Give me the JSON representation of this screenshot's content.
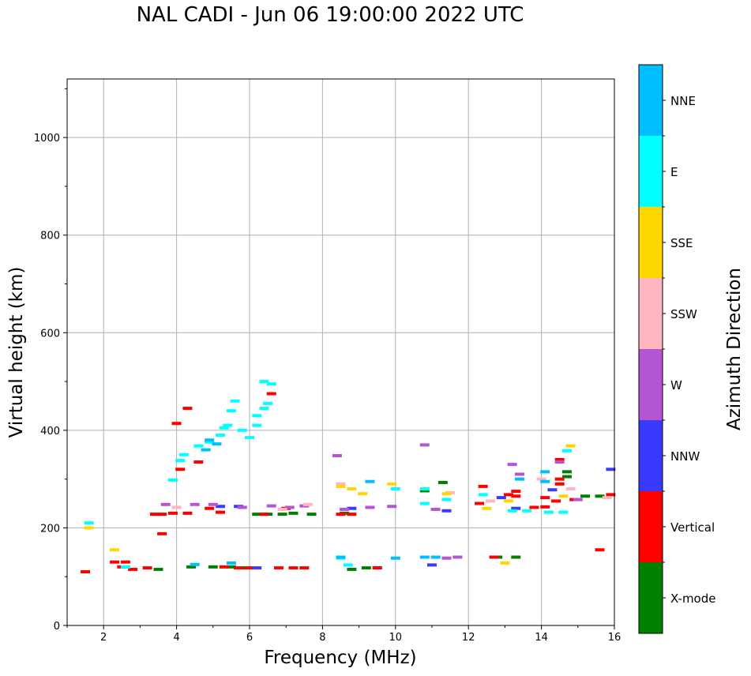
{
  "chart_data": {
    "type": "scatter",
    "title": "NAL CADI - Jun 06 19:00:00 2022 UTC",
    "xlabel": "Frequency (MHz)",
    "ylabel": "Virtual height (km)",
    "xlim": [
      1,
      16
    ],
    "ylim": [
      0,
      1120
    ],
    "xticks": [
      2,
      4,
      6,
      8,
      10,
      12,
      14,
      16
    ],
    "yticks": [
      0,
      200,
      400,
      600,
      800,
      1000
    ],
    "grid": true,
    "colorbar": {
      "label": "Azimuth Direction",
      "categories": [
        "X-mode",
        "Vertical",
        "NNW",
        "W",
        "SSW",
        "SSE",
        "E",
        "NNE"
      ],
      "colors": {
        "X-mode": "#008000",
        "Vertical": "#ff0000",
        "NNW": "#3a3aff",
        "W": "#b455d4",
        "SSW": "#ffb6c1",
        "SSE": "#ffd700",
        "E": "#00ffff",
        "NNE": "#00bfff"
      }
    },
    "series": [
      {
        "name": "X-mode",
        "points": [
          [
            5.0,
            120
          ],
          [
            5.5,
            120
          ],
          [
            5.9,
            118
          ],
          [
            6.2,
            228
          ],
          [
            6.5,
            228
          ],
          [
            6.9,
            228
          ],
          [
            7.2,
            230
          ],
          [
            7.7,
            228
          ],
          [
            8.6,
            230
          ],
          [
            8.8,
            115
          ],
          [
            9.2,
            118
          ],
          [
            9.5,
            118
          ],
          [
            12.8,
            140
          ],
          [
            13.3,
            140
          ],
          [
            14.7,
            315
          ],
          [
            14.7,
            305
          ],
          [
            15.2,
            265
          ],
          [
            15.6,
            265
          ],
          [
            11.3,
            293
          ],
          [
            10.8,
            276
          ],
          [
            4.4,
            120
          ],
          [
            3.5,
            115
          ]
        ]
      },
      {
        "name": "Vertical",
        "points": [
          [
            1.5,
            110
          ],
          [
            2.3,
            130
          ],
          [
            2.5,
            120
          ],
          [
            2.8,
            115
          ],
          [
            3.2,
            118
          ],
          [
            3.4,
            228
          ],
          [
            3.6,
            228
          ],
          [
            3.9,
            230
          ],
          [
            4.3,
            230
          ],
          [
            4.1,
            320
          ],
          [
            4.3,
            445
          ],
          [
            4.6,
            335
          ],
          [
            4.9,
            240
          ],
          [
            5.2,
            232
          ],
          [
            5.7,
            118
          ],
          [
            6.0,
            118
          ],
          [
            6.4,
            228
          ],
          [
            6.6,
            475
          ],
          [
            6.8,
            118
          ],
          [
            7.0,
            240
          ],
          [
            7.2,
            118
          ],
          [
            7.5,
            118
          ],
          [
            8.5,
            228
          ],
          [
            8.8,
            228
          ],
          [
            9.5,
            118
          ],
          [
            12.4,
            285
          ],
          [
            12.3,
            250
          ],
          [
            12.7,
            140
          ],
          [
            13.1,
            268
          ],
          [
            13.3,
            275
          ],
          [
            13.3,
            265
          ],
          [
            13.8,
            242
          ],
          [
            14.1,
            262
          ],
          [
            14.1,
            243
          ],
          [
            14.4,
            255
          ],
          [
            14.5,
            340
          ],
          [
            14.5,
            300
          ],
          [
            14.5,
            290
          ],
          [
            14.9,
            258
          ],
          [
            15.6,
            155
          ],
          [
            15.9,
            268
          ],
          [
            4.0,
            414
          ],
          [
            3.6,
            188
          ],
          [
            2.6,
            130
          ],
          [
            5.3,
            120
          ]
        ]
      },
      {
        "name": "NNW",
        "points": [
          [
            5.2,
            244
          ],
          [
            5.7,
            244
          ],
          [
            8.8,
            240
          ],
          [
            11.0,
            124
          ],
          [
            11.4,
            235
          ],
          [
            12.9,
            262
          ],
          [
            13.3,
            240
          ],
          [
            14.3,
            278
          ],
          [
            15.9,
            320
          ],
          [
            6.2,
            118
          ]
        ]
      },
      {
        "name": "W",
        "points": [
          [
            3.7,
            248
          ],
          [
            4.5,
            248
          ],
          [
            5.0,
            248
          ],
          [
            5.8,
            242
          ],
          [
            6.6,
            245
          ],
          [
            7.1,
            242
          ],
          [
            7.5,
            245
          ],
          [
            8.4,
            348
          ],
          [
            8.6,
            238
          ],
          [
            9.3,
            242
          ],
          [
            9.9,
            244
          ],
          [
            10.8,
            370
          ],
          [
            11.1,
            238
          ],
          [
            11.4,
            138
          ],
          [
            11.7,
            140
          ],
          [
            13.2,
            330
          ],
          [
            13.4,
            310
          ],
          [
            14.5,
            335
          ],
          [
            15.0,
            258
          ]
        ]
      },
      {
        "name": "SSW",
        "points": [
          [
            4.0,
            242
          ],
          [
            6.9,
            238
          ],
          [
            7.6,
            248
          ],
          [
            8.5,
            290
          ],
          [
            11.5,
            272
          ],
          [
            12.6,
            255
          ],
          [
            14.0,
            300
          ],
          [
            14.8,
            280
          ],
          [
            15.8,
            262
          ]
        ]
      },
      {
        "name": "SSE",
        "points": [
          [
            1.6,
            200
          ],
          [
            2.3,
            155
          ],
          [
            8.5,
            285
          ],
          [
            8.8,
            280
          ],
          [
            9.1,
            270
          ],
          [
            9.9,
            290
          ],
          [
            11.4,
            270
          ],
          [
            12.5,
            240
          ],
          [
            13.0,
            128
          ],
          [
            13.1,
            255
          ],
          [
            14.8,
            368
          ],
          [
            14.6,
            265
          ]
        ]
      },
      {
        "name": "E",
        "points": [
          [
            1.6,
            210
          ],
          [
            2.6,
            120
          ],
          [
            3.9,
            298
          ],
          [
            4.2,
            350
          ],
          [
            4.6,
            368
          ],
          [
            4.9,
            376
          ],
          [
            5.2,
            390
          ],
          [
            5.3,
            405
          ],
          [
            5.5,
            440
          ],
          [
            5.6,
            460
          ],
          [
            5.4,
            410
          ],
          [
            5.8,
            400
          ],
          [
            6.0,
            385
          ],
          [
            6.2,
            430
          ],
          [
            6.4,
            445
          ],
          [
            6.5,
            455
          ],
          [
            6.4,
            500
          ],
          [
            6.6,
            495
          ],
          [
            6.2,
            410
          ],
          [
            4.1,
            338
          ],
          [
            10.0,
            280
          ],
          [
            10.8,
            280
          ],
          [
            10.8,
            250
          ],
          [
            11.4,
            258
          ],
          [
            12.4,
            268
          ],
          [
            13.2,
            235
          ],
          [
            13.6,
            235
          ],
          [
            14.2,
            232
          ],
          [
            14.6,
            232
          ],
          [
            14.7,
            358
          ],
          [
            8.5,
            138
          ],
          [
            8.7,
            124
          ]
        ]
      },
      {
        "name": "NNE",
        "points": [
          [
            4.5,
            125
          ],
          [
            5.5,
            128
          ],
          [
            8.5,
            140
          ],
          [
            9.3,
            295
          ],
          [
            10.0,
            138
          ],
          [
            10.8,
            140
          ],
          [
            11.1,
            140
          ],
          [
            13.4,
            300
          ],
          [
            14.1,
            295
          ],
          [
            14.1,
            315
          ],
          [
            4.8,
            360
          ],
          [
            4.9,
            380
          ],
          [
            5.1,
            372
          ]
        ]
      }
    ]
  }
}
